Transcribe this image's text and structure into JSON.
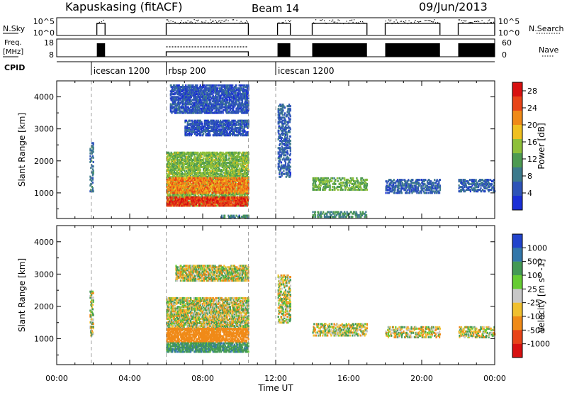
{
  "header": {
    "station": "Kapuskasing (fitACF)",
    "beam": "Beam 14",
    "date": "09/Jun/2013"
  },
  "strip_panels": {
    "nsky": {
      "label": "N.Sky",
      "left_ticks": [
        "10^5",
        "10^0"
      ],
      "right_ticks": [
        "10^5",
        "10^0"
      ],
      "right_label": "N.Search",
      "right_label_style": "dotted"
    },
    "freq": {
      "label_line1": "Freq.",
      "label_line2": "[MHz]",
      "left_ticks": [
        "18",
        "8"
      ],
      "right_ticks": [
        "60",
        "0"
      ],
      "right_label": "Nave",
      "right_label_style": "dotted"
    },
    "cpid": {
      "label": "CPID",
      "modes": [
        {
          "name": "icescan 1200",
          "start_hour": 1.9
        },
        {
          "name": "rbsp 200",
          "start_hour": 6.0
        },
        {
          "name": "icescan 1200",
          "start_hour": 12.0
        }
      ]
    }
  },
  "chart_data": [
    {
      "type": "heatmap",
      "title": "Power",
      "ylabel": "Slant Range [km]",
      "xlabel": "Time UT",
      "x_ticks": [
        "00:00",
        "04:00",
        "08:00",
        "12:00",
        "16:00",
        "20:00",
        "00:00"
      ],
      "x_range_hours": [
        0,
        24
      ],
      "y_ticks": [
        1000,
        2000,
        3000,
        4000
      ],
      "ylim": [
        200,
        4500
      ],
      "colorbar": {
        "label": "Power [dB]",
        "ticks": [
          "4",
          "8",
          "12",
          "16",
          "20",
          "24",
          "28"
        ],
        "range": [
          0,
          30
        ],
        "colors": [
          "#1a2fd6",
          "#2e54b8",
          "#3c7a8c",
          "#4d9a52",
          "#8ec03a",
          "#f0c020",
          "#f08a18",
          "#e84418",
          "#d81010"
        ]
      },
      "scatter_regions": [
        {
          "t": [
            1.8,
            2.0
          ],
          "r": [
            1050,
            2600
          ],
          "value": 8
        },
        {
          "t": [
            6.0,
            10.5
          ],
          "r": [
            600,
            2300
          ],
          "value": 14
        },
        {
          "t": [
            6.0,
            10.5
          ],
          "r": [
            1000,
            1500
          ],
          "value": 22
        },
        {
          "t": [
            6.0,
            10.5
          ],
          "r": [
            600,
            900
          ],
          "value": 26
        },
        {
          "t": [
            7.0,
            10.5
          ],
          "r": [
            2800,
            3300
          ],
          "value": 5
        },
        {
          "t": [
            6.2,
            10.5
          ],
          "r": [
            3500,
            4400
          ],
          "value": 5
        },
        {
          "t": [
            12.1,
            12.8
          ],
          "r": [
            1500,
            3800
          ],
          "value": 6
        },
        {
          "t": [
            14.0,
            17.0
          ],
          "r": [
            1100,
            1500
          ],
          "value": 13
        },
        {
          "t": [
            14.0,
            17.0
          ],
          "r": [
            250,
            450
          ],
          "value": 10
        },
        {
          "t": [
            18.0,
            21.0
          ],
          "r": [
            1000,
            1450
          ],
          "value": 6
        },
        {
          "t": [
            22.0,
            24.0
          ],
          "r": [
            1050,
            1450
          ],
          "value": 6
        },
        {
          "t": [
            9.0,
            10.5
          ],
          "r": [
            220,
            320
          ],
          "value": 9
        }
      ]
    },
    {
      "type": "heatmap",
      "title": "Velocity",
      "ylabel": "Slant Range [km]",
      "xlabel": "Time UT",
      "x_ticks": [
        "00:00",
        "04:00",
        "08:00",
        "12:00",
        "16:00",
        "20:00",
        "00:00"
      ],
      "x_range_hours": [
        0,
        24
      ],
      "y_ticks": [
        1000,
        2000,
        3000,
        4000
      ],
      "ylim": [
        200,
        4500
      ],
      "colorbar": {
        "label": "Velocity [m s^-1]",
        "ticks": [
          "1000",
          "500",
          "100",
          "25",
          "-25",
          "-100",
          "-500",
          "-1000"
        ],
        "colors": [
          "#2244cc",
          "#3377aa",
          "#449955",
          "#66cc33",
          "#c8c8c8",
          "#f0c030",
          "#f08a18",
          "#e84418",
          "#d81010"
        ]
      },
      "scatter_regions": [
        {
          "t": [
            1.8,
            2.0
          ],
          "r": [
            1100,
            2500
          ],
          "value": 0
        },
        {
          "t": [
            6.0,
            10.5
          ],
          "r": [
            1300,
            2300
          ],
          "value": 0
        },
        {
          "t": [
            6.0,
            10.5
          ],
          "r": [
            900,
            1350
          ],
          "value": -300
        },
        {
          "t": [
            6.0,
            10.5
          ],
          "r": [
            600,
            900
          ],
          "value": 200
        },
        {
          "t": [
            6.5,
            10.5
          ],
          "r": [
            2800,
            3300
          ],
          "value": 0
        },
        {
          "t": [
            12.1,
            12.8
          ],
          "r": [
            1500,
            3000
          ],
          "value": 0
        },
        {
          "t": [
            14.0,
            17.0
          ],
          "r": [
            1100,
            1500
          ],
          "value": 0
        },
        {
          "t": [
            18.0,
            21.0
          ],
          "r": [
            1050,
            1400
          ],
          "value": 0
        },
        {
          "t": [
            22.0,
            24.0
          ],
          "r": [
            1050,
            1400
          ],
          "value": 0
        }
      ]
    }
  ]
}
